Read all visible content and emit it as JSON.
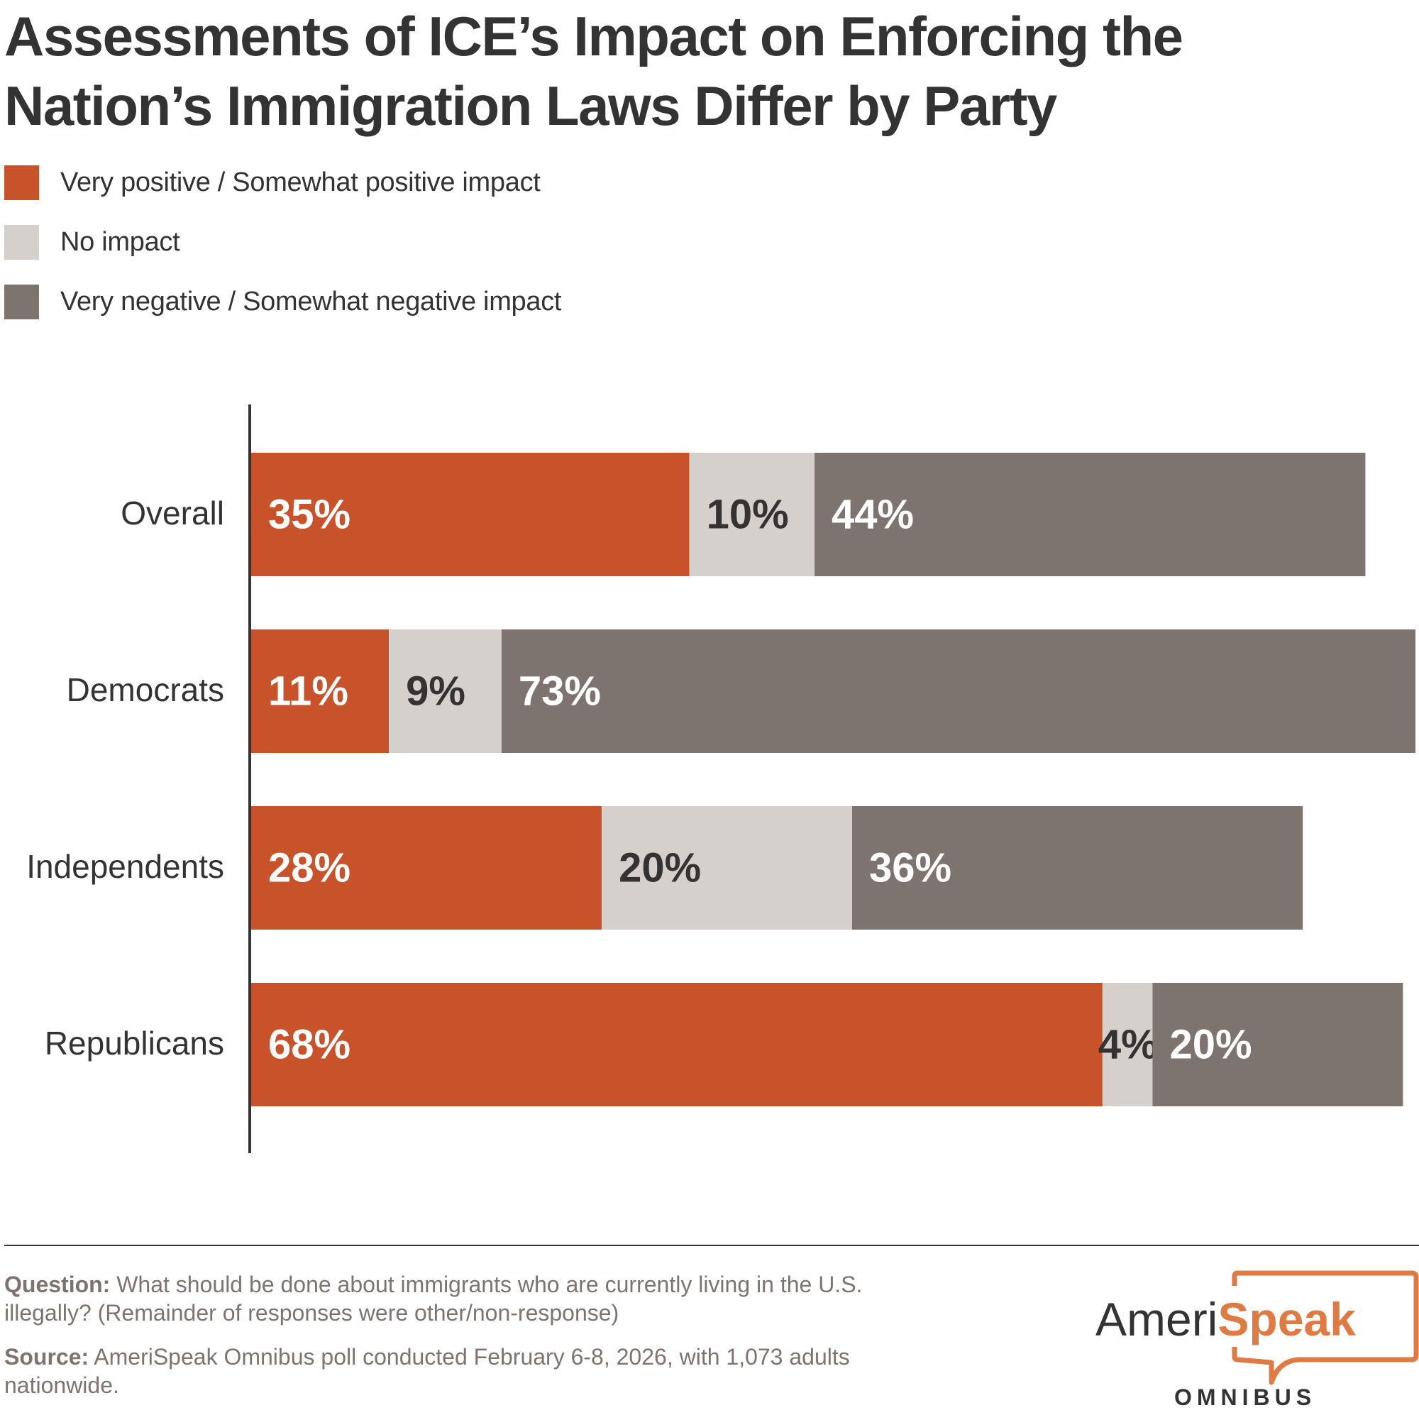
{
  "colors": {
    "positive": "#c8532a",
    "none": "#d5d0cb",
    "negative": "#7e746f",
    "text_dark": "#333333",
    "note_text": "#7d746f",
    "logo_orange": "#e07a43"
  },
  "chart_data": {
    "type": "bar",
    "orientation": "horizontal",
    "stacked": true,
    "title": "Assessments of ICE’s Impact on Enforcing the Nation’s Immigration Laws Differ by Party",
    "xlabel": "",
    "ylabel": "",
    "xlim": [
      0,
      93
    ],
    "grid": false,
    "legend_position": "top-left",
    "categories": [
      "Overall",
      "Democrats",
      "Independents",
      "Republicans"
    ],
    "series": [
      {
        "name": "Very positive / Somewhat positive impact",
        "key": "positive",
        "values": [
          35,
          11,
          28,
          68
        ]
      },
      {
        "name": "No impact",
        "key": "none",
        "values": [
          10,
          9,
          20,
          4
        ]
      },
      {
        "name": "Very negative / Somewhat negative impact",
        "key": "negative",
        "values": [
          44,
          73,
          36,
          20
        ]
      }
    ],
    "data_labels": [
      [
        "35%",
        "10%",
        "44%"
      ],
      [
        "11%",
        "9%",
        "73%"
      ],
      [
        "28%",
        "20%",
        "36%"
      ],
      [
        "68%",
        "4%",
        "20%"
      ]
    ]
  },
  "legend": [
    {
      "label": "Very positive / Somewhat positive impact",
      "color_key": "positive"
    },
    {
      "label": "No impact",
      "color_key": "none"
    },
    {
      "label": "Very negative / Somewhat negative impact",
      "color_key": "negative"
    }
  ],
  "notes": {
    "question_label": "Question:",
    "question_text": " What should be done about immigrants who are currently living in the U.S. illegally? (Remainder of responses were other/non-response)",
    "source_label": "Source:",
    "source_text": " AmeriSpeak Omnibus poll conducted February 6-8, 2026, with 1,073 adults nationwide."
  },
  "logo": {
    "part1": "Ameri",
    "part2": "Speak",
    "sub": "OMNIBUS"
  }
}
